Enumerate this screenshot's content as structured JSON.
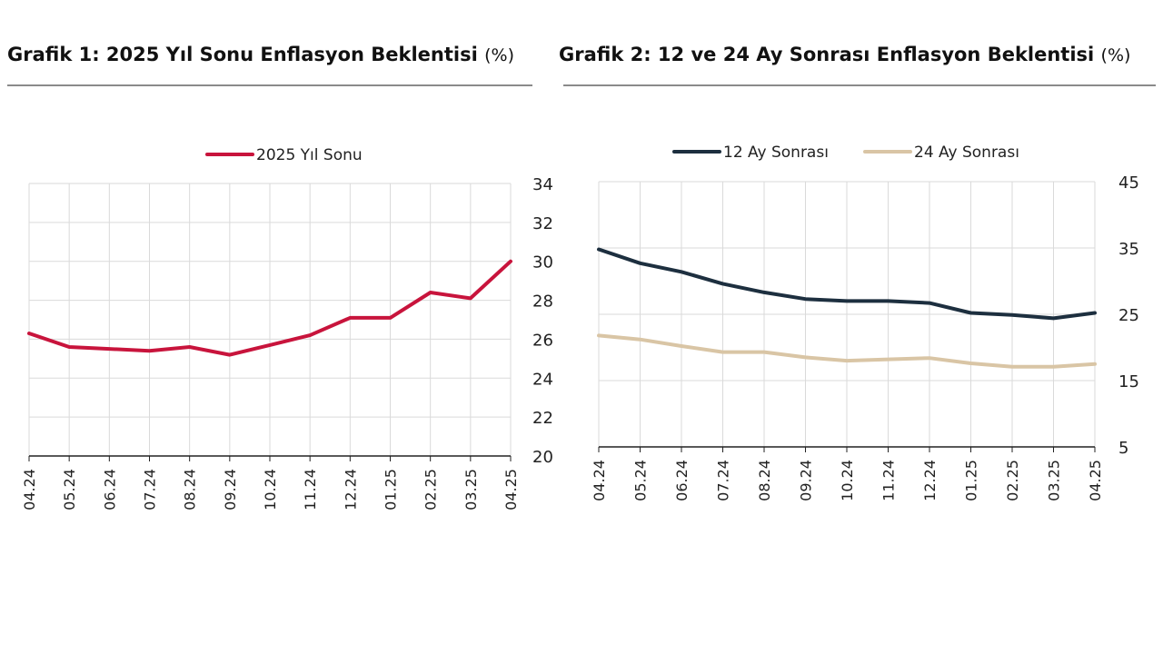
{
  "chart_data": [
    {
      "type": "line",
      "title": "Grafik 1: 2025 Yıl Sonu Enflasyon Beklentisi",
      "unit": "(%)",
      "categories": [
        "04.24",
        "05.24",
        "06.24",
        "07.24",
        "08.24",
        "09.24",
        "10.24",
        "11.24",
        "12.24",
        "01.25",
        "02.25",
        "03.25",
        "04.25"
      ],
      "series": [
        {
          "name": "2025 Yıl Sonu",
          "values": [
            26.3,
            25.6,
            25.5,
            25.4,
            25.6,
            25.2,
            25.7,
            26.2,
            27.1,
            27.1,
            28.4,
            28.1,
            30.0
          ]
        }
      ],
      "ylim": [
        20,
        34
      ],
      "yticks": [
        "20",
        "22",
        "24",
        "26",
        "28",
        "30",
        "32",
        "34"
      ],
      "grid": true,
      "legend": "top-center",
      "colors": {
        "2025 Yıl Sonu": "#c8143c"
      }
    },
    {
      "type": "line",
      "title": "Grafik 2: 12 ve 24 Ay Sonrası Enflasyon Beklentisi",
      "unit": "(%)",
      "categories": [
        "04.24",
        "05.24",
        "06.24",
        "07.24",
        "08.24",
        "09.24",
        "10.24",
        "11.24",
        "12.24",
        "01.25",
        "02.25",
        "03.25",
        "04.25"
      ],
      "series": [
        {
          "name": "12 Ay Sonrası",
          "values": [
            34.8,
            32.7,
            31.4,
            29.6,
            28.3,
            27.3,
            27.0,
            27.0,
            26.7,
            25.2,
            24.9,
            24.4,
            25.2
          ]
        },
        {
          "name": "24 Ay Sonrası",
          "values": [
            21.8,
            21.2,
            20.2,
            19.3,
            19.3,
            18.5,
            18.0,
            18.2,
            18.4,
            17.6,
            17.1,
            17.1,
            17.5
          ]
        }
      ],
      "ylim": [
        5,
        45
      ],
      "yticks": [
        "5",
        "15",
        "25",
        "35",
        "45"
      ],
      "grid": true,
      "legend": "top-center",
      "colors": {
        "12 Ay Sonrası": "#1d2f3f",
        "24 Ay Sonrası": "#d9c5a5"
      }
    }
  ]
}
